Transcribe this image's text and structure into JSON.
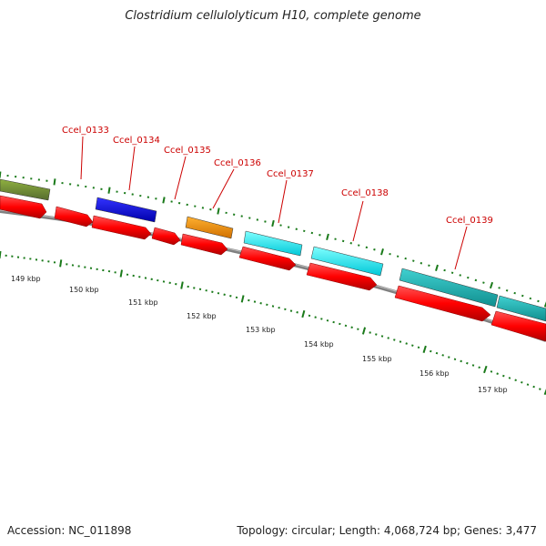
{
  "title": "Clostridium cellulolyticum H10, complete genome",
  "footer": {
    "accession": "Accession: NC_011898",
    "summary": "Topology: circular; Length: 4,068,724 bp; Genes: 3,477"
  },
  "colors": {
    "backbone": "#808080",
    "forward_cds": "#ff0000",
    "tick": "#1a7a1a",
    "label": "#cc0000",
    "olive": "#6b8e23",
    "blue": "#0000ee",
    "orange": "#ff9900",
    "cyan": "#00ffff",
    "teal": "#20b2aa"
  },
  "scale_labels": [
    "149 kbp",
    "150 kbp",
    "151 kbp",
    "152 kbp",
    "153 kbp",
    "154 kbp",
    "155 kbp",
    "156 kbp",
    "157 kbp"
  ],
  "gene_labels": [
    {
      "name": "Ccel_0133",
      "color": "green"
    },
    {
      "name": "Ccel_0134",
      "color": "blue"
    },
    {
      "name": "Ccel_0135",
      "color": "red"
    },
    {
      "name": "Ccel_0136",
      "color": "orange"
    },
    {
      "name": "Ccel_0137",
      "color": "cyan"
    },
    {
      "name": "Ccel_0138",
      "color": "cyan"
    },
    {
      "name": "Ccel_0139",
      "color": "teal"
    }
  ]
}
